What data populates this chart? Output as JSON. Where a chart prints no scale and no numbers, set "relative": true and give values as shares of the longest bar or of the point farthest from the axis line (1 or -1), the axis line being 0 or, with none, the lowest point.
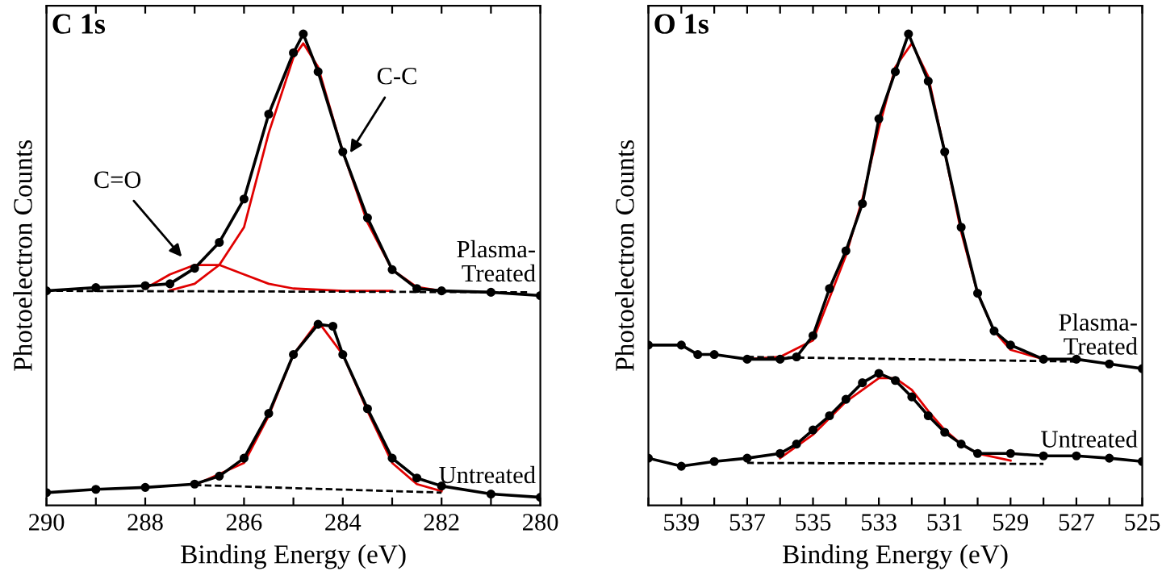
{
  "chart_data": [
    {
      "type": "line",
      "title": "C 1s",
      "xlabel": "Binding Energy (eV)",
      "ylabel": "Photoelectron Counts",
      "relative": true,
      "xlim": [
        290,
        280
      ],
      "xticks": [
        290,
        {
          "value": 289,
          "label": null
        },
        288,
        {
          "value": 287,
          "label": null
        },
        286,
        {
          "value": 285,
          "label": null
        },
        284,
        {
          "value": 283,
          "label": null
        },
        282,
        {
          "value": 281,
          "label": null
        },
        280
      ],
      "grid": false,
      "legend": false,
      "annotations": [
        {
          "text": "C-C",
          "x": 283.9,
          "y": 0.74
        },
        {
          "text": "C=O",
          "x": 287.2,
          "y": 0.52
        }
      ],
      "series": [
        {
          "color": "#e00000",
          "marker": "none",
          "line_style": "solid",
          "x": [
            288,
            287.5,
            287,
            286.5,
            286,
            285.5,
            285,
            284,
            283
          ],
          "values": [
            0.46,
            0.49,
            0.51,
            0.51,
            0.49,
            0.47,
            0.46,
            0.455,
            0.455
          ]
        },
        {
          "color": "#e00000",
          "marker": "none",
          "line_style": "solid",
          "x": [
            287.5,
            287,
            286.5,
            286,
            285.5,
            285,
            284.8,
            284.5,
            284,
            283.5,
            283,
            282.5,
            282
          ],
          "values": [
            0.456,
            0.47,
            0.51,
            0.59,
            0.79,
            0.95,
            0.98,
            0.93,
            0.75,
            0.6,
            0.5,
            0.463,
            0.455
          ]
        },
        {
          "color": "#000000",
          "marker": "none",
          "line_style": "dashed",
          "x": [
            289.8,
            280.2
          ],
          "values": [
            0.455,
            0.452
          ]
        },
        {
          "name": "Plasma-\nTreated",
          "color": "#000000",
          "marker": "circle",
          "line_style": "solid",
          "x": [
            290,
            289,
            288,
            287.5,
            287,
            286.5,
            286,
            285.5,
            285,
            284.8,
            284.5,
            284,
            283.5,
            283,
            282.5,
            282,
            281,
            280
          ],
          "values": [
            0.455,
            0.462,
            0.466,
            0.47,
            0.503,
            0.558,
            0.65,
            0.83,
            0.96,
            1.0,
            0.92,
            0.75,
            0.61,
            0.5,
            0.46,
            0.455,
            0.452,
            0.445
          ]
        },
        {
          "color": "#e00000",
          "marker": "none",
          "line_style": "solid",
          "x": [
            287,
            286,
            285.5,
            285,
            284.5,
            284,
            283.5,
            283,
            282.5,
            282
          ],
          "values": [
            0.043,
            0.09,
            0.19,
            0.32,
            0.39,
            0.32,
            0.2,
            0.09,
            0.045,
            0.03
          ]
        },
        {
          "color": "#000000",
          "marker": "none",
          "line_style": "dashed",
          "x": [
            287,
            282
          ],
          "values": [
            0.043,
            0.027
          ]
        },
        {
          "name": "Untreated",
          "color": "#000000",
          "marker": "circle",
          "line_style": "solid",
          "x": [
            290,
            289,
            288,
            287,
            286.5,
            286,
            285.5,
            285,
            284.5,
            284.2,
            284,
            283.5,
            283,
            282.5,
            282,
            281,
            280
          ],
          "values": [
            0.027,
            0.034,
            0.038,
            0.045,
            0.062,
            0.1,
            0.195,
            0.32,
            0.384,
            0.38,
            0.32,
            0.205,
            0.1,
            0.058,
            0.041,
            0.024,
            0.017
          ]
        }
      ]
    },
    {
      "type": "line",
      "title": "O 1s",
      "xlabel": "Binding Energy (eV)",
      "ylabel": "Photoelectron Counts",
      "relative": true,
      "xlim": [
        540,
        525
      ],
      "xticks": [
        {
          "value": 540,
          "label": null
        },
        539,
        {
          "value": 538,
          "label": null
        },
        537,
        {
          "value": 536,
          "label": null
        },
        535,
        {
          "value": 534,
          "label": null
        },
        533,
        {
          "value": 532,
          "label": null
        },
        531,
        {
          "value": 530,
          "label": null
        },
        529,
        {
          "value": 528,
          "label": null
        },
        527,
        {
          "value": 526,
          "label": null
        },
        525
      ],
      "grid": false,
      "legend": false,
      "series": [
        {
          "color": "#e00000",
          "marker": "none",
          "line_style": "solid",
          "x": [
            537,
            536,
            535,
            534.5,
            534,
            533.5,
            533,
            532.5,
            532,
            531.5,
            531,
            530.5,
            530,
            529.5,
            529,
            528
          ],
          "values": [
            0.31,
            0.315,
            0.35,
            0.44,
            0.53,
            0.65,
            0.8,
            0.93,
            0.98,
            0.91,
            0.75,
            0.58,
            0.45,
            0.37,
            0.33,
            0.31
          ]
        },
        {
          "color": "#000000",
          "marker": "none",
          "line_style": "dashed",
          "x": [
            537,
            527
          ],
          "values": [
            0.315,
            0.305
          ]
        },
        {
          "name": "Plasma-\nTreated",
          "color": "#000000",
          "marker": "circle",
          "line_style": "solid",
          "x": [
            540,
            539,
            538.5,
            538,
            537,
            536,
            535.5,
            535,
            534.5,
            534,
            533.5,
            533,
            532.5,
            532.1,
            531.5,
            531,
            530.5,
            530,
            529.5,
            529,
            528,
            527,
            526,
            525
          ],
          "values": [
            0.34,
            0.34,
            0.32,
            0.32,
            0.31,
            0.31,
            0.315,
            0.36,
            0.46,
            0.54,
            0.64,
            0.82,
            0.92,
            1.0,
            0.9,
            0.75,
            0.59,
            0.45,
            0.37,
            0.34,
            0.31,
            0.31,
            0.3,
            0.29
          ]
        },
        {
          "color": "#e00000",
          "marker": "none",
          "line_style": "solid",
          "x": [
            536,
            535,
            534,
            533,
            532.5,
            532,
            531.5,
            531,
            530.5,
            530,
            529
          ],
          "values": [
            0.1,
            0.15,
            0.22,
            0.27,
            0.27,
            0.245,
            0.2,
            0.16,
            0.13,
            0.11,
            0.095
          ]
        },
        {
          "color": "#000000",
          "marker": "none",
          "line_style": "dashed",
          "x": [
            537,
            528
          ],
          "values": [
            0.09,
            0.088
          ]
        },
        {
          "name": "Untreated",
          "color": "#000000",
          "marker": "circle",
          "line_style": "solid",
          "x": [
            540,
            539,
            538,
            537,
            536,
            535.5,
            535,
            534.5,
            534,
            533.5,
            533,
            532.5,
            532,
            531.5,
            531,
            530.5,
            530,
            529,
            528,
            527,
            526,
            525
          ],
          "values": [
            0.1,
            0.083,
            0.093,
            0.1,
            0.11,
            0.13,
            0.16,
            0.19,
            0.225,
            0.26,
            0.28,
            0.265,
            0.23,
            0.19,
            0.155,
            0.13,
            0.11,
            0.11,
            0.105,
            0.105,
            0.1,
            0.093
          ]
        }
      ]
    }
  ]
}
